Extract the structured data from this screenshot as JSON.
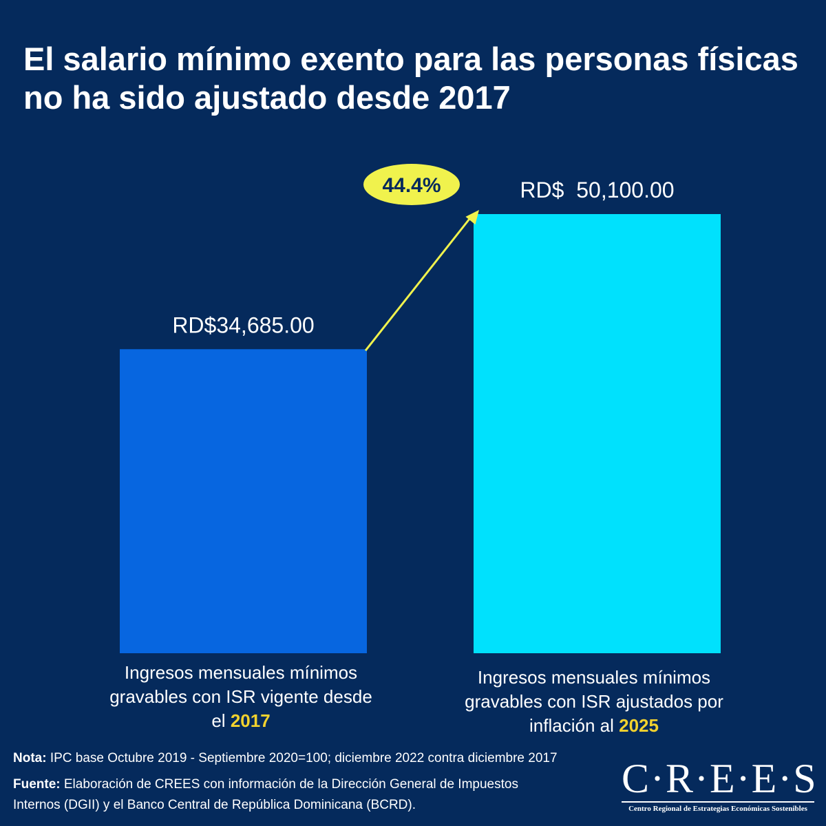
{
  "title": "El salario mínimo exento para las personas físicas no ha sido ajustado desde 2017",
  "chart_data": {
    "type": "bar",
    "categories": [
      {
        "text": "Ingresos mensuales mínimos  gravables con ISR vigente desde el",
        "year": "2017"
      },
      {
        "text": "Ingresos mensuales mínimos gravables con ISR ajustados por inflación al",
        "year": "2025"
      }
    ],
    "values": [
      34685.0,
      50100.0
    ],
    "value_labels": [
      "RD$34,685.00",
      "RD$  50,100.00"
    ],
    "colors": [
      "#0766e0",
      "#00e1fd"
    ],
    "ylim": [
      0,
      50100
    ],
    "grid": false,
    "annotation": {
      "label": "44.4%",
      "color": "#f0f24d"
    }
  },
  "footer": {
    "note_label": "Nota:",
    "note_text": " IPC base Octubre 2019 - Septiembre 2020=100; diciembre 2022 contra diciembre 2017",
    "source_label": "Fuente:",
    "source_text": " Elaboración de CREES con información de la Dirección General de Impuestos Internos (DGII) y el Banco Central de República Dominicana (BCRD)."
  },
  "logo": {
    "word": "C·R·E·E·S",
    "subtitle": "Centro Regional de Estrategias Económicas Sostenibles"
  }
}
